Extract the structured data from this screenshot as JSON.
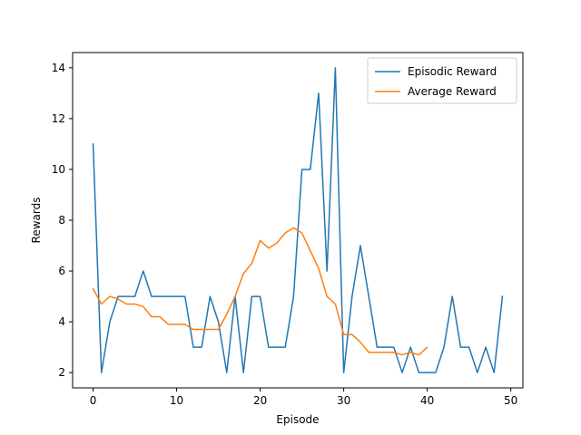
{
  "chart_data": {
    "type": "line",
    "title": "",
    "xlabel": "Episode",
    "ylabel": "Rewards",
    "xlim": [
      -2.45,
      51.45
    ],
    "ylim": [
      1.4,
      14.6
    ],
    "xticks": [
      0,
      10,
      20,
      30,
      40,
      50
    ],
    "yticks": [
      2,
      4,
      6,
      8,
      10,
      12,
      14
    ],
    "grid": false,
    "legend_position": "top-right",
    "series": [
      {
        "name": "Episodic Reward",
        "color": "#1f77b4",
        "x": [
          0,
          1,
          2,
          3,
          4,
          5,
          6,
          7,
          8,
          9,
          10,
          11,
          12,
          13,
          14,
          15,
          16,
          17,
          18,
          19,
          20,
          21,
          22,
          23,
          24,
          25,
          26,
          27,
          28,
          29,
          30,
          31,
          32,
          33,
          34,
          35,
          36,
          37,
          38,
          39,
          40,
          41,
          42,
          43,
          44,
          45,
          46,
          47,
          48,
          49
        ],
        "values": [
          11,
          2,
          4,
          5,
          5,
          5,
          6,
          5,
          5,
          5,
          5,
          5,
          3,
          3,
          5,
          4,
          2,
          5,
          2,
          5,
          5,
          3,
          3,
          3,
          5,
          10,
          10,
          13,
          6,
          14,
          2,
          5,
          7,
          5,
          3,
          3,
          3,
          2,
          3,
          2,
          2,
          2,
          3,
          5,
          3,
          3,
          2,
          3,
          2,
          5
        ]
      },
      {
        "name": "Average Reward",
        "color": "#ff7f0e",
        "x": [
          0,
          1,
          2,
          3,
          4,
          5,
          6,
          7,
          8,
          9,
          10,
          11,
          12,
          13,
          14,
          15,
          16,
          17,
          18,
          19,
          20,
          21,
          22,
          23,
          24,
          25,
          26,
          27,
          28,
          29,
          30,
          31,
          32,
          33,
          34,
          35,
          36,
          37,
          38,
          39,
          40
        ],
        "values": [
          5.3,
          4.7,
          5.0,
          4.9,
          4.7,
          4.7,
          4.6,
          4.2,
          4.2,
          3.9,
          3.9,
          3.9,
          3.7,
          3.7,
          3.7,
          3.7,
          4.3,
          5.0,
          5.9,
          6.3,
          7.2,
          6.9,
          7.1,
          7.5,
          7.7,
          7.5,
          6.8,
          6.1,
          5.0,
          4.7,
          3.5,
          3.5,
          3.2,
          2.8,
          2.8,
          2.8,
          2.8,
          2.7,
          2.8,
          2.7,
          3.0
        ]
      }
    ]
  }
}
